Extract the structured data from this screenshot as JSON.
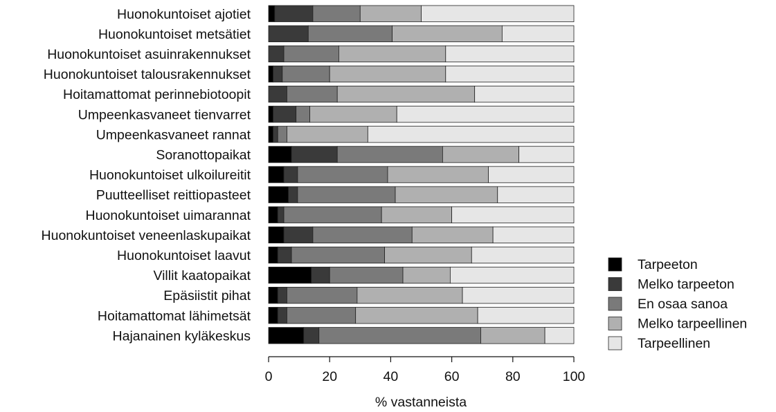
{
  "chart_data": {
    "type": "bar",
    "orientation": "horizontal",
    "stacked": true,
    "xlabel": "% vastanneista",
    "xlim": [
      0,
      100
    ],
    "xticks": [
      0,
      20,
      40,
      60,
      80,
      100
    ],
    "legend_position": "right",
    "categories": [
      "Huonokuntoiset ajotiet",
      "Huonokuntoiset metsätiet",
      "Huonokuntoiset asuinrakennukset",
      "Huonokuntoiset talousrakennukset",
      "Hoitamattomat perinnebiotoopit",
      "Umpeenkasvaneet tienvarret",
      "Umpeenkasvaneet rannat",
      "Soranottopaikat",
      "Huonokuntoiset ulkoilureitit",
      "Puutteelliset reittiopasteet",
      "Huonokuntoiset uimarannat",
      "Huonokuntoiset veneenlaskupaikat",
      "Huonokuntoiset laavut",
      "Villit kaatopaikat",
      "Epäsiistit pihat",
      "Hoitamattomat lähimetsät",
      "Hajanainen kyläkeskus"
    ],
    "series": [
      {
        "name": "Tarpeeton",
        "color": "#000000",
        "values": [
          2,
          0,
          0,
          1.5,
          0,
          1.5,
          1.5,
          7.5,
          5,
          6.5,
          3,
          5,
          3,
          14,
          3,
          3,
          11.5
        ]
      },
      {
        "name": "Melko tarpeeton",
        "color": "#3a3a3a",
        "values": [
          12.5,
          13,
          5,
          3,
          6,
          7.5,
          1.5,
          15,
          4.5,
          3,
          2,
          9.5,
          4.5,
          6,
          3,
          3,
          5
        ]
      },
      {
        "name": "En osaa sanoa",
        "color": "#7a7a7a",
        "values": [
          15.5,
          27.5,
          18,
          15.5,
          16.5,
          4.5,
          3,
          34.5,
          29.5,
          32,
          32,
          32.5,
          30.5,
          24,
          23,
          22.5,
          53
        ]
      },
      {
        "name": "Melko tarpeellinen",
        "color": "#b0b0b0",
        "values": [
          20,
          36,
          35,
          38,
          45,
          28.5,
          26.5,
          25,
          33,
          33.5,
          23,
          26.5,
          28.5,
          15.5,
          34.5,
          40,
          21
        ]
      },
      {
        "name": "Tarpeellinen",
        "color": "#e6e6e6",
        "values": [
          50,
          23.5,
          42,
          42,
          32.5,
          58,
          67.5,
          18,
          28,
          25,
          40,
          26.5,
          33.5,
          40.5,
          36.5,
          31.5,
          9.5
        ]
      }
    ]
  }
}
